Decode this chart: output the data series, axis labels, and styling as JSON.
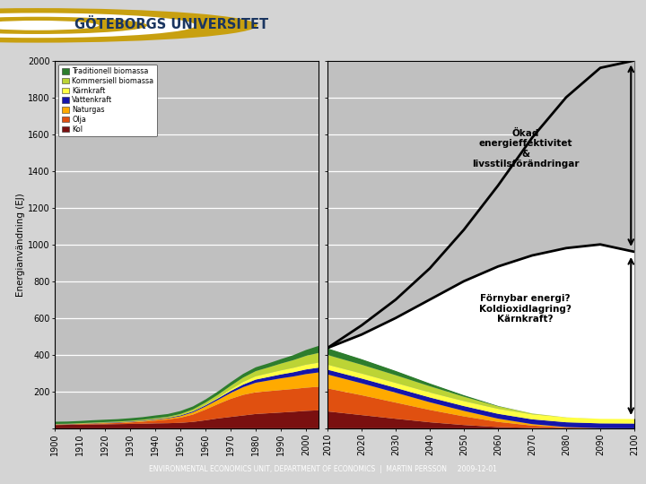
{
  "ylabel": "Energianvändning (EJ)",
  "ylim": [
    0,
    2000
  ],
  "yticks": [
    0,
    200,
    400,
    600,
    800,
    1000,
    1200,
    1400,
    1600,
    1800,
    2000
  ],
  "hist_years": [
    1900,
    1905,
    1910,
    1915,
    1920,
    1925,
    1930,
    1935,
    1940,
    1945,
    1950,
    1955,
    1960,
    1965,
    1970,
    1975,
    1980,
    1985,
    1990,
    1995,
    2000,
    2005
  ],
  "fut_years": [
    2010,
    2020,
    2030,
    2040,
    2050,
    2060,
    2070,
    2080,
    2090,
    2100
  ],
  "legend_labels": [
    "Traditionell biomassa",
    "Kommersiell biomassa",
    "Kärnkraft",
    "Vattenkraft",
    "Naturgas",
    "Olja",
    "Kol"
  ],
  "colors": {
    "trad_bio": "#2d7d2d",
    "komm_bio": "#bcd435",
    "karnkraft": "#ffff44",
    "vatten": "#1515aa",
    "naturgas": "#ffaa00",
    "olja": "#e05010",
    "kol": "#7a1010",
    "plot_bg": "#c0c0c0"
  },
  "hist_kol": [
    18,
    19,
    20,
    21,
    22,
    23,
    24,
    25,
    27,
    28,
    30,
    35,
    44,
    54,
    62,
    70,
    78,
    82,
    86,
    90,
    95,
    98
  ],
  "hist_olja": [
    2,
    2,
    3,
    4,
    5,
    6,
    8,
    11,
    15,
    20,
    28,
    40,
    58,
    78,
    98,
    112,
    118,
    120,
    122,
    124,
    126,
    128
  ],
  "hist_naturgas": [
    1,
    1,
    1,
    2,
    2,
    2,
    3,
    4,
    5,
    6,
    8,
    12,
    17,
    23,
    32,
    42,
    52,
    58,
    64,
    68,
    74,
    78
  ],
  "hist_vatten": [
    1,
    1,
    1,
    1,
    2,
    2,
    2,
    2,
    3,
    3,
    4,
    5,
    6,
    8,
    11,
    14,
    17,
    19,
    21,
    23,
    25,
    26
  ],
  "hist_karnkraft": [
    0,
    0,
    0,
    0,
    0,
    0,
    0,
    0,
    0,
    0,
    0,
    1,
    2,
    4,
    8,
    14,
    18,
    20,
    22,
    24,
    26,
    27
  ],
  "hist_kommbio": [
    2,
    2,
    3,
    3,
    3,
    4,
    4,
    5,
    5,
    6,
    8,
    10,
    13,
    16,
    20,
    24,
    28,
    32,
    37,
    42,
    48,
    53
  ],
  "hist_tradbio": [
    12,
    12,
    12,
    13,
    13,
    13,
    14,
    14,
    15,
    15,
    16,
    16,
    17,
    18,
    19,
    20,
    21,
    22,
    24,
    27,
    32,
    38
  ],
  "fut_kol": [
    92,
    72,
    52,
    33,
    18,
    7,
    2,
    1,
    0,
    0
  ],
  "fut_olja": [
    125,
    108,
    88,
    67,
    47,
    28,
    13,
    4,
    1,
    0
  ],
  "fut_naturgas": [
    76,
    65,
    54,
    42,
    30,
    18,
    8,
    2,
    0,
    0
  ],
  "fut_vatten": [
    26,
    26,
    26,
    26,
    26,
    26,
    26,
    26,
    26,
    26
  ],
  "fut_karnkraft": [
    27,
    27,
    27,
    27,
    27,
    27,
    27,
    27,
    27,
    27
  ],
  "fut_kommbio": [
    53,
    48,
    42,
    34,
    24,
    14,
    6,
    2,
    0,
    0
  ],
  "fut_tradbio": [
    38,
    32,
    25,
    17,
    10,
    4,
    1,
    0,
    0,
    0
  ],
  "future_curve_top": [
    437,
    510,
    600,
    700,
    800,
    880,
    940,
    980,
    1000,
    960
  ],
  "future_demand_high": [
    437,
    560,
    700,
    870,
    1080,
    1320,
    1580,
    1800,
    1960,
    2000
  ],
  "univ_name": "GÖTEBORGS UNIVERSITET",
  "footer_text": "ENVIRONMENTAL ECONOMICS UNIT, DEPARTMENT OF ECONOMICS  |  MARTIN PERSSON     2009-12-01",
  "footer_bg": "#1a3560",
  "fig_bg": "#d4d4d4",
  "header_bg": "#ffffff",
  "divider_color": "#1a3560"
}
